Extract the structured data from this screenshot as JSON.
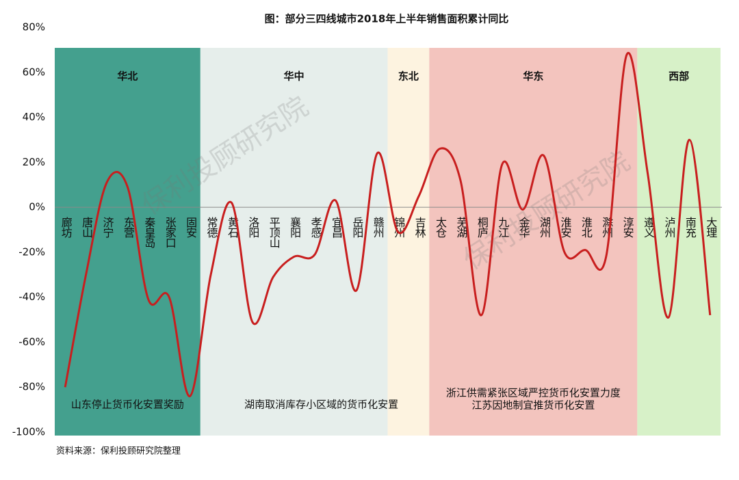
{
  "chart_data": {
    "type": "line",
    "title": "图：部分三四线城市2018年上半年销售面积累计同比",
    "categories": [
      "廊坊",
      "唐山",
      "济宁",
      "东营",
      "秦皇岛",
      "张家口",
      "固安",
      "常德",
      "黄石",
      "洛阳",
      "平顶山",
      "襄阳",
      "孝感",
      "宜昌",
      "岳阳",
      "赣州",
      "锦州",
      "吉林",
      "太仓",
      "芜湖",
      "桐庐",
      "九江",
      "金华",
      "湖州",
      "淮安",
      "淮北",
      "滁州",
      "淳安",
      "遵义",
      "泸州",
      "南充",
      "大理"
    ],
    "series": [
      {
        "color": "#c81e1e",
        "values": [
          -80,
          -30,
          11,
          9,
          -41,
          -40,
          -84,
          -30,
          2,
          -51,
          -31,
          -22,
          -21,
          3,
          -37,
          24,
          -11,
          5,
          26,
          12,
          -48,
          19,
          -1,
          23,
          -20,
          -19,
          -22,
          68,
          15,
          -49,
          30,
          -48
        ]
      }
    ],
    "ylim": [
      -100,
      80
    ],
    "yticks": [
      {
        "value": -100,
        "label": "-100%"
      },
      {
        "value": -80,
        "label": "-80%"
      },
      {
        "value": -60,
        "label": "-60%"
      },
      {
        "value": -40,
        "label": "-40%"
      },
      {
        "value": -20,
        "label": "-20%"
      },
      {
        "value": 0,
        "label": "0%"
      },
      {
        "value": 20,
        "label": "20%"
      },
      {
        "value": 40,
        "label": "40%"
      },
      {
        "value": 60,
        "label": "60%"
      },
      {
        "value": 80,
        "label": "80%"
      }
    ],
    "grid": false,
    "regions": [
      {
        "name": "华北",
        "count": 7,
        "color": "#44a08e"
      },
      {
        "name": "华中",
        "count": 9,
        "color": "#e6eeeb"
      },
      {
        "name": "东北",
        "count": 2,
        "color": "#fdf3e0"
      },
      {
        "name": "华东",
        "count": 10,
        "color": "#f3c4be"
      },
      {
        "name": "西部",
        "count": 4,
        "color": "#d7f1c8"
      }
    ],
    "annotations": [
      "山东停止货币化安置奖励",
      "湖南取消库存小区域的货币化安置",
      "浙江供需紧张区域严控货币化安置力度",
      "江苏因地制宜推货币化安置"
    ],
    "watermark": "保利投顾研究院",
    "source": "资料来源：保利投顾研究院整理"
  }
}
